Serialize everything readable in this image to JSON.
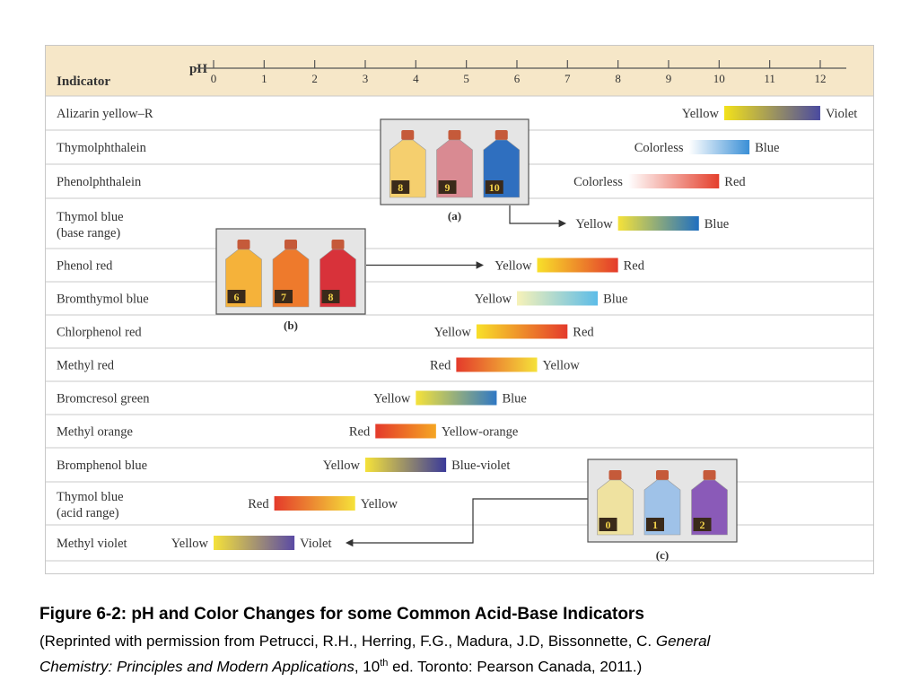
{
  "chart_data": {
    "type": "range",
    "header_label": "Indicator",
    "axis_label": "pH",
    "ticks": [
      "0",
      "1",
      "2",
      "3",
      "4",
      "5",
      "6",
      "7",
      "8",
      "9",
      "10",
      "11",
      "12"
    ],
    "xlim": [
      0,
      12
    ],
    "indicators": [
      {
        "name": [
          "Alizarin yellow–R"
        ],
        "ph_start": 10.1,
        "ph_end": 12.0,
        "low_color": "Yellow",
        "high_color": "Violet",
        "colors": [
          "#f3e21a",
          "#4a4aa0"
        ],
        "low_label_side": "left"
      },
      {
        "name": [
          "Thymolphthalein"
        ],
        "ph_start": 9.4,
        "ph_end": 10.6,
        "low_color": "Colorless",
        "high_color": "Blue",
        "colors": [
          "#ffffff",
          "#3a8fd6"
        ],
        "low_label_side": "left"
      },
      {
        "name": [
          "Phenolphthalein"
        ],
        "ph_start": 8.2,
        "ph_end": 10.0,
        "low_color": "Colorless",
        "high_color": "Red",
        "colors": [
          "#ffffff",
          "#e43f2c"
        ],
        "low_label_side": "left"
      },
      {
        "name": [
          "Thymol blue",
          "(base range)"
        ],
        "ph_start": 8.0,
        "ph_end": 9.6,
        "low_color": "Yellow",
        "high_color": "Blue",
        "colors": [
          "#f5e23a",
          "#1f6fc0"
        ],
        "low_label_side": "left"
      },
      {
        "name": [
          "Phenol red"
        ],
        "ph_start": 6.4,
        "ph_end": 8.0,
        "low_color": "Yellow",
        "high_color": "Red",
        "colors": [
          "#f8e02a",
          "#e43a2b"
        ],
        "low_label_side": "left"
      },
      {
        "name": [
          "Bromthymol blue"
        ],
        "ph_start": 6.0,
        "ph_end": 7.6,
        "low_color": "Yellow",
        "high_color": "Blue",
        "colors": [
          "#f7f2b8",
          "#5cbce8"
        ],
        "low_label_side": "left"
      },
      {
        "name": [
          "Chlorphenol red"
        ],
        "ph_start": 5.2,
        "ph_end": 7.0,
        "low_color": "Yellow",
        "high_color": "Red",
        "colors": [
          "#f8e02a",
          "#e43a2b"
        ],
        "low_label_side": "left"
      },
      {
        "name": [
          "Methyl red"
        ],
        "ph_start": 4.8,
        "ph_end": 6.4,
        "low_color": "Red",
        "high_color": "Yellow",
        "colors": [
          "#e43a2b",
          "#f5e23a"
        ],
        "low_label_side": "left"
      },
      {
        "name": [
          "Bromcresol green"
        ],
        "ph_start": 4.0,
        "ph_end": 5.6,
        "low_color": "Yellow",
        "high_color": "Blue",
        "colors": [
          "#f5e23a",
          "#2f78c4"
        ],
        "low_label_side": "left"
      },
      {
        "name": [
          "Methyl orange"
        ],
        "ph_start": 3.2,
        "ph_end": 4.4,
        "low_color": "Red",
        "high_color": "Yellow-orange",
        "colors": [
          "#e43a2b",
          "#f5a623"
        ],
        "low_label_side": "left"
      },
      {
        "name": [
          "Bromphenol blue"
        ],
        "ph_start": 3.0,
        "ph_end": 4.6,
        "low_color": "Yellow",
        "high_color": "Blue-violet",
        "colors": [
          "#f5e23a",
          "#3a3a9a"
        ],
        "low_label_side": "left"
      },
      {
        "name": [
          "Thymol blue",
          "(acid range)"
        ],
        "ph_start": 1.2,
        "ph_end": 2.8,
        "low_color": "Red",
        "high_color": "Yellow",
        "colors": [
          "#e43a2b",
          "#f5e23a"
        ],
        "low_label_side": "left"
      },
      {
        "name": [
          "Methyl violet"
        ],
        "ph_start": 0.0,
        "ph_end": 1.6,
        "low_color": "Yellow",
        "high_color": "Violet",
        "colors": [
          "#f5e23a",
          "#5a4aa5"
        ],
        "low_label_side": "left"
      }
    ],
    "insets": [
      {
        "label": "(a)",
        "bottles": [
          {
            "number": "8",
            "color": "#f5cf6e"
          },
          {
            "number": "9",
            "color": "#d98a92"
          },
          {
            "number": "10",
            "color": "#2f6fbf"
          }
        ]
      },
      {
        "label": "(b)",
        "bottles": [
          {
            "number": "6",
            "color": "#f5b23a"
          },
          {
            "number": "7",
            "color": "#ee7a2c"
          },
          {
            "number": "8",
            "color": "#d8323a"
          }
        ]
      },
      {
        "label": "(c)",
        "bottles": [
          {
            "number": "0",
            "color": "#efe2a0"
          },
          {
            "number": "1",
            "color": "#9fc2e8"
          },
          {
            "number": "2",
            "color": "#8a5ab8"
          }
        ]
      }
    ]
  },
  "caption": {
    "title": "Figure 6-2: pH and Color Changes for some Common Acid-Base Indicators",
    "line_1_prefix": "(Reprinted with permission from Petrucci, R.H., Herring, F.G., Madura, J.D, Bissonnette, C. ",
    "line_1_italic": "General",
    "line_2_italic": "Chemistry: Principles and Modern Applications",
    "line_2_mid": ", 10",
    "line_2_sup": "th",
    "line_2_suffix": " ed. Toronto: Pearson Canada, 2011.)"
  },
  "colors": {
    "header_bg": "#f6e7c8",
    "row_line": "#c9c9c9",
    "text": "#333333",
    "inset_bg": "#e5e5e5",
    "cap_color": "#c55a3a"
  }
}
